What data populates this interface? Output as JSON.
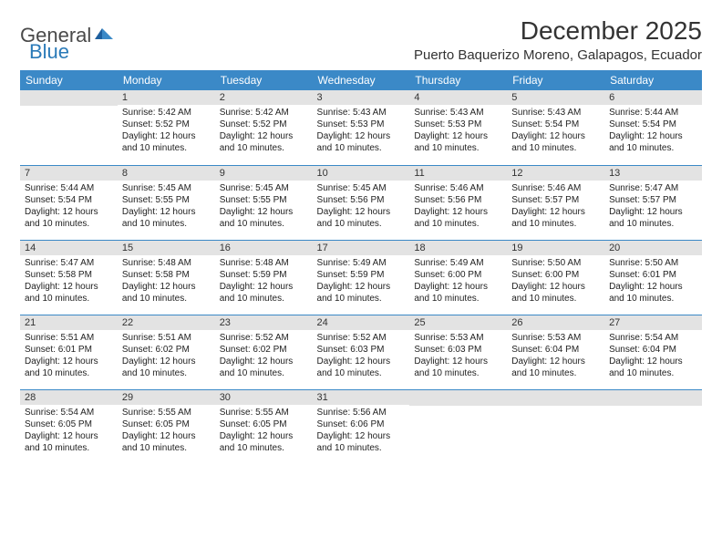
{
  "logo": {
    "text1": "General",
    "text2": "Blue"
  },
  "title": "December 2025",
  "location": "Puerto Baquerizo Moreno, Galapagos, Ecuador",
  "colors": {
    "headerBg": "#3b89c7",
    "headerText": "#ffffff",
    "dayBarBg": "#e3e3e3",
    "borderColor": "#3b89c7"
  },
  "weekdays": [
    "Sunday",
    "Monday",
    "Tuesday",
    "Wednesday",
    "Thursday",
    "Friday",
    "Saturday"
  ],
  "startWeekday": 1,
  "daysInMonth": 31,
  "days": {
    "1": {
      "sunrise": "5:42 AM",
      "sunset": "5:52 PM",
      "daylight": "12 hours and 10 minutes."
    },
    "2": {
      "sunrise": "5:42 AM",
      "sunset": "5:52 PM",
      "daylight": "12 hours and 10 minutes."
    },
    "3": {
      "sunrise": "5:43 AM",
      "sunset": "5:53 PM",
      "daylight": "12 hours and 10 minutes."
    },
    "4": {
      "sunrise": "5:43 AM",
      "sunset": "5:53 PM",
      "daylight": "12 hours and 10 minutes."
    },
    "5": {
      "sunrise": "5:43 AM",
      "sunset": "5:54 PM",
      "daylight": "12 hours and 10 minutes."
    },
    "6": {
      "sunrise": "5:44 AM",
      "sunset": "5:54 PM",
      "daylight": "12 hours and 10 minutes."
    },
    "7": {
      "sunrise": "5:44 AM",
      "sunset": "5:54 PM",
      "daylight": "12 hours and 10 minutes."
    },
    "8": {
      "sunrise": "5:45 AM",
      "sunset": "5:55 PM",
      "daylight": "12 hours and 10 minutes."
    },
    "9": {
      "sunrise": "5:45 AM",
      "sunset": "5:55 PM",
      "daylight": "12 hours and 10 minutes."
    },
    "10": {
      "sunrise": "5:45 AM",
      "sunset": "5:56 PM",
      "daylight": "12 hours and 10 minutes."
    },
    "11": {
      "sunrise": "5:46 AM",
      "sunset": "5:56 PM",
      "daylight": "12 hours and 10 minutes."
    },
    "12": {
      "sunrise": "5:46 AM",
      "sunset": "5:57 PM",
      "daylight": "12 hours and 10 minutes."
    },
    "13": {
      "sunrise": "5:47 AM",
      "sunset": "5:57 PM",
      "daylight": "12 hours and 10 minutes."
    },
    "14": {
      "sunrise": "5:47 AM",
      "sunset": "5:58 PM",
      "daylight": "12 hours and 10 minutes."
    },
    "15": {
      "sunrise": "5:48 AM",
      "sunset": "5:58 PM",
      "daylight": "12 hours and 10 minutes."
    },
    "16": {
      "sunrise": "5:48 AM",
      "sunset": "5:59 PM",
      "daylight": "12 hours and 10 minutes."
    },
    "17": {
      "sunrise": "5:49 AM",
      "sunset": "5:59 PM",
      "daylight": "12 hours and 10 minutes."
    },
    "18": {
      "sunrise": "5:49 AM",
      "sunset": "6:00 PM",
      "daylight": "12 hours and 10 minutes."
    },
    "19": {
      "sunrise": "5:50 AM",
      "sunset": "6:00 PM",
      "daylight": "12 hours and 10 minutes."
    },
    "20": {
      "sunrise": "5:50 AM",
      "sunset": "6:01 PM",
      "daylight": "12 hours and 10 minutes."
    },
    "21": {
      "sunrise": "5:51 AM",
      "sunset": "6:01 PM",
      "daylight": "12 hours and 10 minutes."
    },
    "22": {
      "sunrise": "5:51 AM",
      "sunset": "6:02 PM",
      "daylight": "12 hours and 10 minutes."
    },
    "23": {
      "sunrise": "5:52 AM",
      "sunset": "6:02 PM",
      "daylight": "12 hours and 10 minutes."
    },
    "24": {
      "sunrise": "5:52 AM",
      "sunset": "6:03 PM",
      "daylight": "12 hours and 10 minutes."
    },
    "25": {
      "sunrise": "5:53 AM",
      "sunset": "6:03 PM",
      "daylight": "12 hours and 10 minutes."
    },
    "26": {
      "sunrise": "5:53 AM",
      "sunset": "6:04 PM",
      "daylight": "12 hours and 10 minutes."
    },
    "27": {
      "sunrise": "5:54 AM",
      "sunset": "6:04 PM",
      "daylight": "12 hours and 10 minutes."
    },
    "28": {
      "sunrise": "5:54 AM",
      "sunset": "6:05 PM",
      "daylight": "12 hours and 10 minutes."
    },
    "29": {
      "sunrise": "5:55 AM",
      "sunset": "6:05 PM",
      "daylight": "12 hours and 10 minutes."
    },
    "30": {
      "sunrise": "5:55 AM",
      "sunset": "6:05 PM",
      "daylight": "12 hours and 10 minutes."
    },
    "31": {
      "sunrise": "5:56 AM",
      "sunset": "6:06 PM",
      "daylight": "12 hours and 10 minutes."
    }
  },
  "labels": {
    "sunrise": "Sunrise:",
    "sunset": "Sunset:",
    "daylight": "Daylight:"
  }
}
